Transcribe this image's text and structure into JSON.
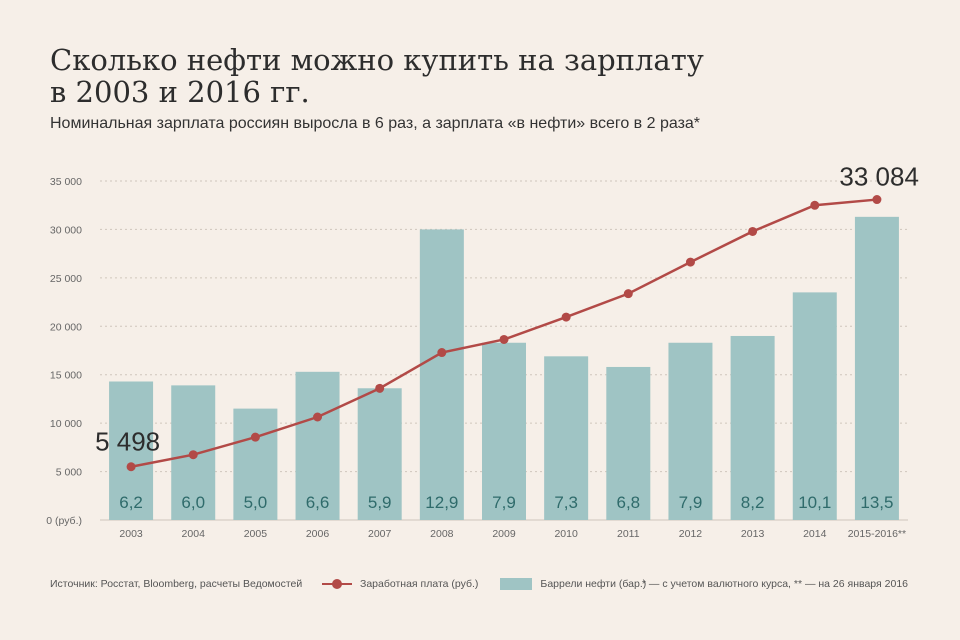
{
  "title_lines": [
    "Сколько нефти можно купить на зарплату",
    "в 2003 и 2016 гг."
  ],
  "subtitle": "Номинальная зарплата россиян выросла в 6 раз, а зарплата «в нефти» всего в 2 раза*",
  "source": "Источник: Росстат, Bloomberg, расчеты Ведомостей",
  "note": "* — с учетом валютного курса, ** — на 26 января 2016",
  "colors": {
    "bar": "#9fc4c4",
    "line": "#b24a47",
    "bar_label": "#2f6b6b",
    "background": "#f6efe8"
  },
  "chart_data": {
    "type": "bar+line",
    "categories": [
      "2003",
      "2004",
      "2005",
      "2006",
      "2007",
      "2008",
      "2009",
      "2010",
      "2011",
      "2012",
      "2013",
      "2014",
      "2015-2016**"
    ],
    "ylim": [
      0,
      35000
    ],
    "yticks": [
      0,
      5000,
      10000,
      15000,
      20000,
      25000,
      30000,
      35000
    ],
    "ytick_labels": [
      "0 (руб.)",
      "5 000",
      "10 000",
      "15 000",
      "20 000",
      "25 000",
      "30 000",
      "35 000"
    ],
    "grid": true,
    "series": [
      {
        "name": "Баррели нефти (бар.)",
        "kind": "bar",
        "values": [
          14300,
          13900,
          11500,
          15300,
          13600,
          30000,
          18300,
          16900,
          15800,
          18300,
          19000,
          23500,
          31300
        ],
        "labels": [
          "6,2",
          "6,0",
          "5,0",
          "6,6",
          "5,9",
          "12,9",
          "7,9",
          "7,3",
          "6,8",
          "7,9",
          "8,2",
          "10,1",
          "13,5"
        ]
      },
      {
        "name": "Заработная плата (руб.)",
        "kind": "line",
        "values": [
          5498,
          6740,
          8555,
          10634,
          13593,
          17290,
          18638,
          20952,
          23369,
          26629,
          29792,
          32495,
          33084
        ]
      }
    ],
    "annotations": [
      {
        "index": 0,
        "text": "5 498"
      },
      {
        "index": 12,
        "text": "33 084"
      }
    ]
  }
}
